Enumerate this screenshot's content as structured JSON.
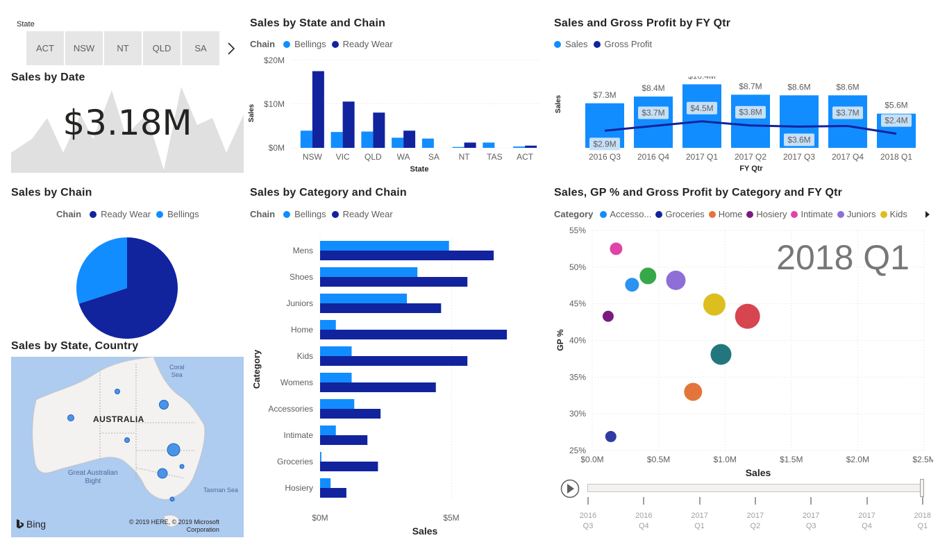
{
  "slicer": {
    "label": "State",
    "items": [
      "ACT",
      "NSW",
      "NT",
      "QLD",
      "SA"
    ],
    "next_icon": "chevron-right-icon"
  },
  "sales_by_date": {
    "title": "Sales by Date",
    "value": "$3.18M"
  },
  "sales_by_state_chain": {
    "title": "Sales by State and Chain",
    "legend_title": "Chain",
    "legend": [
      "Bellings",
      "Ready Wear"
    ],
    "xlabel": "State",
    "ylabel": "Sales",
    "yticks": [
      "$20M",
      "$10M",
      "$0M"
    ]
  },
  "sales_gp_fyqtr": {
    "title": "Sales and Gross Profit by FY Qtr",
    "legend": [
      "Sales",
      "Gross Profit"
    ],
    "xlabel": "FY Qtr",
    "ylabel": "Sales",
    "sales_labels": [
      "$7.3M",
      "$8.4M",
      "$10.4M",
      "$8.7M",
      "$8.6M",
      "$8.6M",
      "$5.6M"
    ],
    "gp_labels": [
      "$2.9M",
      "$3.7M",
      "$4.5M",
      "$3.8M",
      "$3.6M",
      "$3.7M",
      "$2.4M"
    ]
  },
  "sales_by_chain": {
    "title": "Sales by Chain",
    "legend_title": "Chain",
    "legend": [
      "Ready Wear",
      "Bellings"
    ]
  },
  "sales_by_category_chain": {
    "title": "Sales by Category and Chain",
    "legend_title": "Chain",
    "legend": [
      "Bellings",
      "Ready Wear"
    ],
    "xlabel": "Sales",
    "ylabel": "Category",
    "xticks": [
      "$0M",
      "$5M"
    ]
  },
  "scatter": {
    "title": "Sales, GP % and Gross Profit by Category and FY Qtr",
    "legend_title": "Category",
    "legend": [
      "Accesso...",
      "Groceries",
      "Home",
      "Hosiery",
      "Intimate",
      "Juniors",
      "Kids"
    ],
    "more_icon": "triangle-right-icon",
    "watermark": "2018 Q1",
    "xlabel": "Sales",
    "ylabel": "GP %",
    "play_icon": "play-icon",
    "timeline": [
      [
        "2016",
        "Q3"
      ],
      [
        "2016",
        "Q4"
      ],
      [
        "2017",
        "Q1"
      ],
      [
        "2017",
        "Q2"
      ],
      [
        "2017",
        "Q3"
      ],
      [
        "2017",
        "Q4"
      ],
      [
        "2018",
        "Q1"
      ]
    ]
  },
  "map": {
    "title": "Sales by State, Country",
    "label_country": "AUSTRALIA",
    "label_coral1": "Coral",
    "label_coral2": "Sea",
    "label_bight1": "Great Australian",
    "label_bight2": "Bight",
    "label_tasman": "Tasman Sea",
    "bing": "Bing",
    "copyright1": "© 2019 HERE, © 2019 Microsoft",
    "copyright2": "Corporation"
  },
  "colors": {
    "bellings": "#118dff",
    "ready_wear": "#12239e",
    "gp_label_bg": "#c6e0f7",
    "area": "#e0e0e0"
  },
  "chart_data": [
    {
      "type": "bar",
      "title": "Sales by State and Chain",
      "categories": [
        "NSW",
        "VIC",
        "QLD",
        "WA",
        "SA",
        "NT",
        "TAS",
        "ACT"
      ],
      "series": [
        {
          "name": "Bellings",
          "values": [
            3.9,
            3.6,
            3.7,
            2.3,
            2.1,
            0.2,
            1.2,
            0.3
          ]
        },
        {
          "name": "Ready Wear",
          "values": [
            17.4,
            10.5,
            8.0,
            3.9,
            0,
            1.2,
            0,
            0.5
          ]
        }
      ],
      "xlabel": "State",
      "ylabel": "Sales",
      "ylim": [
        0,
        20
      ],
      "unit": "$M"
    },
    {
      "type": "bar",
      "title": "Sales and Gross Profit by FY Qtr",
      "categories": [
        "2016 Q3",
        "2016 Q4",
        "2017 Q1",
        "2017 Q2",
        "2017 Q3",
        "2017 Q4",
        "2018 Q1"
      ],
      "series": [
        {
          "name": "Sales",
          "values": [
            7.3,
            8.4,
            10.4,
            8.7,
            8.6,
            8.6,
            5.6
          ]
        },
        {
          "name": "Gross Profit",
          "values": [
            2.9,
            3.7,
            4.5,
            3.8,
            3.6,
            3.7,
            2.4
          ]
        }
      ],
      "xlabel": "FY Qtr",
      "ylabel": "Sales",
      "unit": "$M"
    },
    {
      "type": "pie",
      "title": "Sales by Chain",
      "categories": [
        "Ready Wear",
        "Bellings"
      ],
      "values": [
        70,
        30
      ]
    },
    {
      "type": "bar",
      "orientation": "horizontal",
      "title": "Sales by Category and Chain",
      "categories": [
        "Mens",
        "Shoes",
        "Juniors",
        "Home",
        "Kids",
        "Womens",
        "Accessories",
        "Intimate",
        "Groceries",
        "Hosiery"
      ],
      "series": [
        {
          "name": "Bellings",
          "values": [
            4.9,
            3.7,
            3.3,
            0.6,
            1.2,
            1.2,
            1.3,
            0.6,
            0.05,
            0.4
          ]
        },
        {
          "name": "Ready Wear",
          "values": [
            6.6,
            5.6,
            4.6,
            7.1,
            5.6,
            4.4,
            2.3,
            1.8,
            2.2,
            1.0
          ]
        }
      ],
      "xlabel": "Sales",
      "ylabel": "Category",
      "unit": "$M"
    },
    {
      "type": "scatter",
      "title": "Sales, GP % and Gross Profit by Category and FY Qtr",
      "xlabel": "Sales",
      "ylabel": "GP %",
      "xlim": [
        0,
        2.5
      ],
      "ylim": [
        25,
        55
      ],
      "xticks": [
        "$0.0M",
        "$0.5M",
        "$1.0M",
        "$1.5M",
        "$2.0M",
        "$2.5M"
      ],
      "yticks": [
        "55%",
        "50%",
        "45%",
        "40%",
        "35%",
        "30%",
        "25%"
      ],
      "points": [
        {
          "x": 0.18,
          "y": 52.5,
          "size": 9,
          "color": "#e044a7"
        },
        {
          "x": 0.42,
          "y": 48.8,
          "size": 12,
          "color": "#37a849"
        },
        {
          "x": 0.3,
          "y": 47.6,
          "size": 10,
          "color": "#2b93f0"
        },
        {
          "x": 0.63,
          "y": 48.2,
          "size": 14,
          "color": "#8f6ed8"
        },
        {
          "x": 0.12,
          "y": 43.3,
          "size": 8,
          "color": "#7b1b7e"
        },
        {
          "x": 0.92,
          "y": 44.9,
          "size": 16,
          "color": "#dcbf1f"
        },
        {
          "x": 1.17,
          "y": 43.3,
          "size": 18,
          "color": "#d64550"
        },
        {
          "x": 0.97,
          "y": 38.1,
          "size": 15,
          "color": "#22767e"
        },
        {
          "x": 0.76,
          "y": 33.0,
          "size": 13,
          "color": "#e3753c"
        },
        {
          "x": 0.14,
          "y": 26.9,
          "size": 8,
          "color": "#2e3ba3"
        }
      ]
    }
  ]
}
